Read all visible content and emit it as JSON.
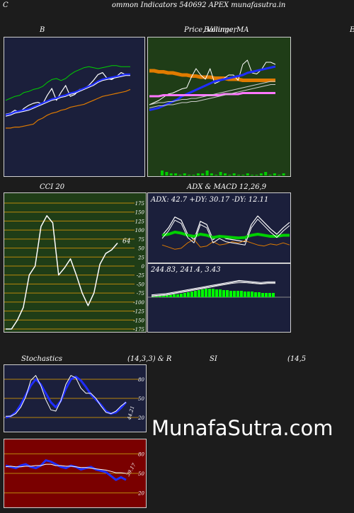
{
  "header": {
    "left_letter": "C",
    "title": "ommon  Indicators 540692  APEX  munafasutra.in"
  },
  "watermark": "MunafaSutra.com",
  "colors": {
    "navy": "#1b1f3b",
    "green_bg": "#1f3d17",
    "dark_red": "#7a0000",
    "grid_gold": "#b8860b",
    "blue": "#1e2dff",
    "orange": "#e07b00"
  },
  "panels": {
    "bollinger": {
      "title": "B"
    },
    "price_ma": {
      "title_a": "Price,",
      "title_b": "Volume,",
      "title_c": "MA",
      "title_overlap": "Bollinger",
      "right_letter": "E"
    },
    "cci": {
      "title": "CCI 20",
      "current_value": "64",
      "ticks": [
        "175",
        "150",
        "125",
        "100",
        "75",
        "50",
        "25",
        "0",
        "-25",
        "-50",
        "-75",
        "-100",
        "-125",
        "-150",
        "-175"
      ]
    },
    "adx_macd": {
      "title": "ADX  & MACD 12,26,9",
      "adx_text": "ADX: 42.7 +DY: 30.17 -DY: 12.11",
      "macd_text": "244.83,  241.4,  3.43"
    },
    "stochastics": {
      "title_left": "Stochastics",
      "title_mid": "(14,3,3) & R",
      "title_rsi": "SI",
      "title_right": "(14,5",
      "ticks": [
        "80",
        "50",
        "20"
      ],
      "current_value": "44.21"
    },
    "rsi": {
      "ticks": [
        "80",
        "50",
        "20"
      ],
      "current_value": "39.17"
    }
  },
  "chart_data": [
    {
      "type": "line",
      "panel": "bollinger",
      "series": [
        {
          "color": "#00d000",
          "values": [
            58,
            60,
            62,
            63,
            66,
            67,
            69,
            70,
            72,
            76,
            79,
            80,
            78,
            80,
            84,
            87,
            89,
            91,
            92,
            91,
            90,
            91,
            92,
            93,
            93,
            92,
            92,
            92
          ]
        },
        {
          "color": "#ffffff",
          "values": [
            44,
            45,
            48,
            46,
            50,
            53,
            55,
            56,
            54,
            63,
            70,
            58,
            66,
            73,
            62,
            64,
            69,
            70,
            73,
            78,
            84,
            86,
            80,
            79,
            82,
            86,
            84,
            84
          ]
        },
        {
          "color": "#1e2dff",
          "values": [
            43,
            44,
            46,
            47,
            48,
            49,
            51,
            53,
            55,
            57,
            59,
            60,
            62,
            63,
            65,
            66,
            68,
            70,
            72,
            74,
            77,
            79,
            80,
            81,
            82,
            83,
            84,
            84
          ]
        },
        {
          "color": "#ffffff",
          "values": [
            42,
            43,
            45,
            46,
            47,
            48,
            50,
            52,
            54,
            56,
            58,
            59,
            61,
            62,
            64,
            65,
            67,
            69,
            71,
            73,
            76,
            78,
            79,
            80,
            81,
            82,
            83,
            83
          ]
        },
        {
          "color": "#e07b00",
          "values": [
            30,
            30,
            31,
            31,
            32,
            33,
            34,
            38,
            40,
            43,
            45,
            46,
            48,
            49,
            51,
            52,
            53,
            54,
            56,
            58,
            60,
            62,
            63,
            64,
            65,
            66,
            67,
            69
          ]
        }
      ]
    },
    {
      "type": "line",
      "panel": "price_ma",
      "series": [
        {
          "color": "#e07b00",
          "values": [
            82,
            82,
            81,
            81,
            80,
            80,
            79,
            78,
            78,
            77,
            77,
            76,
            76,
            76,
            75,
            75,
            75,
            74,
            74,
            74,
            73,
            73,
            73,
            73,
            73,
            73,
            73,
            73
          ]
        },
        {
          "color": "#ffffff",
          "values": [
            50,
            52,
            54,
            57,
            60,
            61,
            63,
            65,
            66,
            76,
            84,
            78,
            74,
            84,
            70,
            72,
            75,
            78,
            78,
            73,
            88,
            92,
            80,
            79,
            83,
            90,
            90,
            88
          ]
        },
        {
          "color": "#1e2dff",
          "values": [
            45,
            46,
            47,
            49,
            51,
            53,
            55,
            58,
            60,
            62,
            64,
            66,
            68,
            70,
            72,
            73,
            74,
            75,
            76,
            77,
            78,
            80,
            81,
            82,
            83,
            84,
            85,
            86
          ]
        },
        {
          "color": "#ff77ff",
          "values": [
            58,
            58,
            58,
            59,
            59,
            59,
            59,
            59,
            59,
            59,
            59,
            59,
            59,
            59,
            59,
            59,
            60,
            60,
            60,
            60,
            61,
            61,
            61,
            61,
            61,
            61,
            61,
            61
          ]
        },
        {
          "color": "#cccccc",
          "values": [
            50,
            51,
            52,
            52,
            53,
            53,
            54,
            55,
            55,
            56,
            56,
            57,
            58,
            59,
            60,
            61,
            62,
            63,
            64,
            65,
            66,
            67,
            68,
            69,
            70,
            71,
            72,
            72
          ]
        }
      ],
      "volume": [
        3,
        2,
        1,
        1,
        0,
        1,
        0,
        0,
        1,
        1,
        3,
        1,
        0,
        2,
        1,
        0,
        1,
        0,
        0,
        1,
        0,
        0,
        1,
        2,
        0,
        1,
        0,
        1
      ]
    },
    {
      "type": "line",
      "panel": "cci",
      "y_range": [
        -175,
        175
      ],
      "values": [
        -175,
        -175,
        -150,
        -115,
        -25,
        0,
        110,
        140,
        120,
        -25,
        -5,
        20,
        -25,
        -75,
        -110,
        -75,
        5,
        35,
        45,
        64
      ]
    },
    {
      "type": "line",
      "panel": "adx",
      "series": [
        {
          "color": "#ffffff",
          "name": "+DY",
          "values": [
            48,
            62,
            82,
            76,
            50,
            40,
            74,
            68,
            40,
            48,
            42,
            40,
            38,
            36,
            68,
            84,
            72,
            60,
            50,
            62,
            72
          ]
        },
        {
          "color": "#00d000",
          "name": "ADX",
          "values": [
            48,
            50,
            54,
            52,
            48,
            46,
            50,
            48,
            44,
            46,
            45,
            44,
            43,
            44,
            48,
            50,
            48,
            46,
            46,
            48,
            48
          ]
        },
        {
          "color": "#e07b00",
          "name": "-DY",
          "values": [
            30,
            26,
            22,
            24,
            34,
            40,
            26,
            28,
            36,
            30,
            32,
            36,
            34,
            38,
            34,
            30,
            28,
            32,
            30,
            34,
            30
          ]
        }
      ]
    },
    {
      "type": "bar",
      "panel": "macd",
      "histogram": [
        1,
        1,
        2,
        2,
        3,
        3,
        4,
        4,
        5,
        6,
        7,
        8,
        9,
        10,
        11,
        12,
        12,
        12,
        11,
        11,
        10,
        10,
        9,
        9,
        9,
        9,
        8,
        8,
        8,
        7,
        7,
        6,
        6,
        6,
        6
      ],
      "series": [
        {
          "color": "#ffffff",
          "name": "MACD",
          "values": [
            2,
            3,
            4,
            6,
            8,
            10,
            12,
            14,
            16,
            18,
            20,
            22,
            24,
            23,
            22,
            21,
            22,
            22
          ]
        },
        {
          "color": "#cccccc",
          "name": "Signal",
          "values": [
            1,
            2,
            3,
            5,
            7,
            9,
            11,
            13,
            15,
            17,
            19,
            21,
            22,
            22,
            21,
            20,
            21,
            21
          ]
        }
      ]
    },
    {
      "type": "line",
      "panel": "stochastics",
      "y_range": [
        0,
        100
      ],
      "series": [
        {
          "color": "#1e2dff",
          "values": [
            20,
            22,
            28,
            40,
            55,
            70,
            80,
            72,
            58,
            44,
            36,
            46,
            65,
            80,
            84,
            78,
            68,
            56,
            48,
            40,
            30,
            26,
            28,
            35,
            44
          ]
        },
        {
          "color": "#ffffff",
          "values": [
            22,
            22,
            26,
            36,
            52,
            78,
            86,
            70,
            48,
            32,
            30,
            46,
            72,
            86,
            82,
            66,
            58,
            58,
            50,
            38,
            28,
            26,
            30,
            38,
            44
          ]
        }
      ]
    },
    {
      "type": "line",
      "panel": "rsi",
      "y_range": [
        0,
        100
      ],
      "series": [
        {
          "color": "#1e2dff",
          "values": [
            62,
            60,
            58,
            62,
            64,
            60,
            58,
            62,
            70,
            68,
            64,
            60,
            58,
            62,
            60,
            56,
            58,
            60,
            56,
            54,
            52,
            46,
            40,
            44,
            40
          ]
        },
        {
          "color": "#ffffff",
          "values": [
            60,
            61,
            60,
            60,
            61,
            61,
            62,
            62,
            64,
            64,
            62,
            62,
            61,
            61,
            60,
            59,
            59,
            58,
            57,
            56,
            55,
            53,
            51,
            51,
            50
          ]
        }
      ]
    }
  ]
}
